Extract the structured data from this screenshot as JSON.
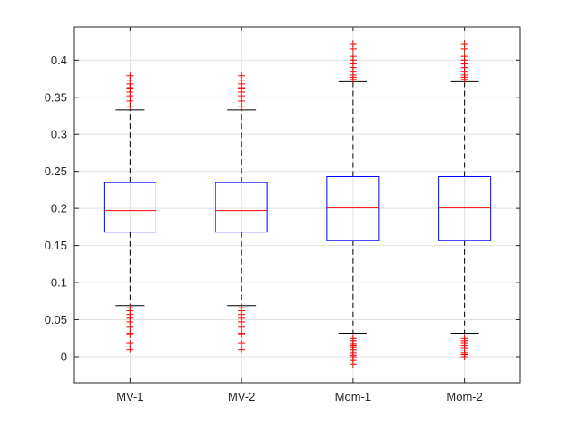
{
  "chart_data": {
    "type": "box",
    "title": "",
    "xlabel": "",
    "ylabel": "",
    "ylim": [
      -0.035,
      0.445
    ],
    "yticks": [
      0,
      0.05,
      0.1,
      0.15,
      0.2,
      0.25,
      0.3,
      0.35,
      0.4
    ],
    "ytick_labels": [
      "0",
      "0.05",
      "0.1",
      "0.15",
      "0.2",
      "0.25",
      "0.3",
      "0.35",
      "0.4"
    ],
    "grid": true,
    "categories": [
      "MV-1",
      "MV-2",
      "Mom-1",
      "Mom-2"
    ],
    "colors": {
      "box": "#0000ff",
      "median": "#ff0000",
      "whisker": "#000000",
      "outlier": "#ff0000",
      "grid": "#e0e0e0",
      "axis": "#262626"
    },
    "boxes": [
      {
        "category": "MV-1",
        "q1": 0.168,
        "median": 0.197,
        "q3": 0.235,
        "whisker_low": 0.069,
        "whisker_high": 0.333,
        "outliers": [
          0.01,
          0.018,
          0.03,
          0.032,
          0.04,
          0.047,
          0.052,
          0.057,
          0.062,
          0.066,
          0.338,
          0.345,
          0.352,
          0.357,
          0.362,
          0.363,
          0.368,
          0.373,
          0.379
        ]
      },
      {
        "category": "MV-2",
        "q1": 0.168,
        "median": 0.197,
        "q3": 0.235,
        "whisker_low": 0.069,
        "whisker_high": 0.333,
        "outliers": [
          0.01,
          0.018,
          0.03,
          0.032,
          0.04,
          0.047,
          0.052,
          0.057,
          0.062,
          0.066,
          0.338,
          0.345,
          0.352,
          0.357,
          0.362,
          0.363,
          0.368,
          0.373,
          0.379
        ]
      },
      {
        "category": "Mom-1",
        "q1": 0.157,
        "median": 0.201,
        "q3": 0.243,
        "whisker_low": 0.032,
        "whisker_high": 0.371,
        "outliers": [
          -0.01,
          -0.005,
          0.0,
          0.002,
          0.005,
          0.008,
          0.01,
          0.013,
          0.015,
          0.017,
          0.02,
          0.022,
          0.025,
          0.374,
          0.377,
          0.38,
          0.385,
          0.39,
          0.395,
          0.4,
          0.405,
          0.415,
          0.422
        ]
      },
      {
        "category": "Mom-2",
        "q1": 0.157,
        "median": 0.201,
        "q3": 0.243,
        "whisker_low": 0.032,
        "whisker_high": 0.371,
        "outliers": [
          0.0,
          0.003,
          0.005,
          0.008,
          0.012,
          0.015,
          0.018,
          0.02,
          0.022,
          0.025,
          0.374,
          0.377,
          0.38,
          0.385,
          0.39,
          0.395,
          0.4,
          0.405,
          0.415,
          0.422
        ]
      }
    ]
  }
}
